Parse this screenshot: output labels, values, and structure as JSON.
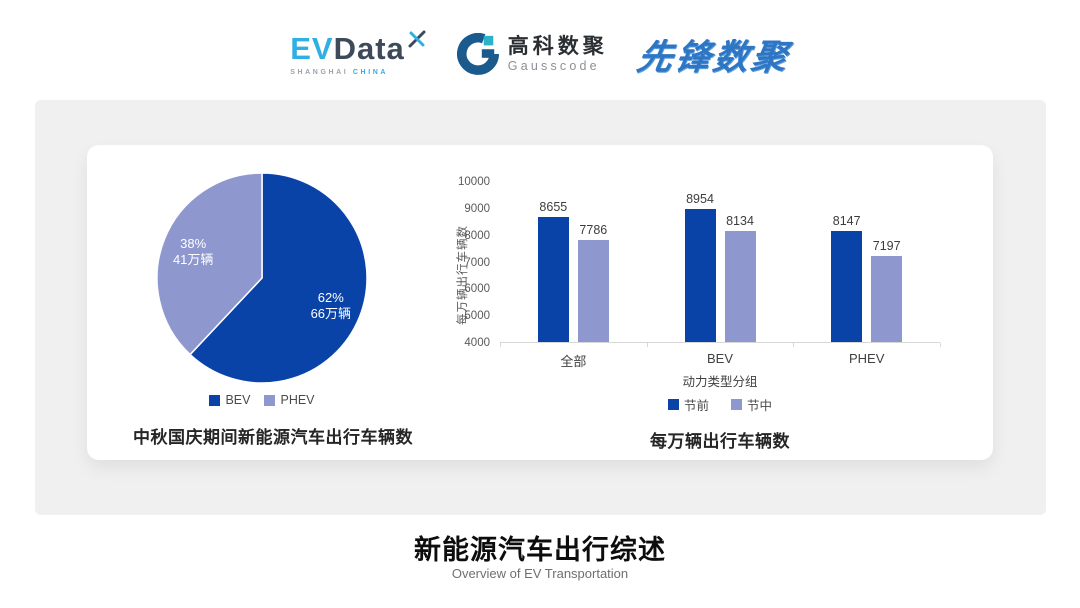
{
  "header": {
    "evdata": {
      "ev": "EV",
      "data": "Data",
      "sub_left": "SHANGHAI",
      "sub_right": "CHINA"
    },
    "gausscode": {
      "cn": "高科数聚",
      "en": "Gausscode"
    },
    "pioneer": {
      "text": "先锋数聚"
    }
  },
  "footer": {
    "title": "新能源汽车出行综述",
    "subtitle": "Overview of EV Transportation"
  },
  "colors": {
    "primary_blue": "#0A43A8",
    "secondary_purple": "#8E98CF",
    "panel_gray": "#F0F0F1"
  },
  "chart_data": [
    {
      "type": "pie",
      "title": "中秋国庆期间新能源汽车出行车辆数",
      "legend_position": "bottom",
      "start_angle": "top",
      "direction": "clockwise",
      "slices": [
        {
          "label": "BEV",
          "percent": 62,
          "value_text": "66万辆",
          "color": "#0A43A8"
        },
        {
          "label": "PHEV",
          "percent": 38,
          "value_text": "41万辆",
          "color": "#8E98CF"
        }
      ]
    },
    {
      "type": "bar",
      "title": "每万辆出行车辆数",
      "xlabel": "动力类型分组",
      "ylabel": "每万辆出行车辆数",
      "categories": [
        "全部",
        "BEV",
        "PHEV"
      ],
      "series": [
        {
          "name": "节前",
          "color": "#0A43A8",
          "values": [
            8655,
            8954,
            8147
          ]
        },
        {
          "name": "节中",
          "color": "#8E98CF",
          "values": [
            7786,
            8134,
            7197
          ]
        }
      ],
      "ylim": [
        4000,
        10000
      ],
      "yticks": [
        4000,
        5000,
        6000,
        7000,
        8000,
        9000,
        10000
      ],
      "grid": false,
      "legend_position": "bottom"
    }
  ]
}
